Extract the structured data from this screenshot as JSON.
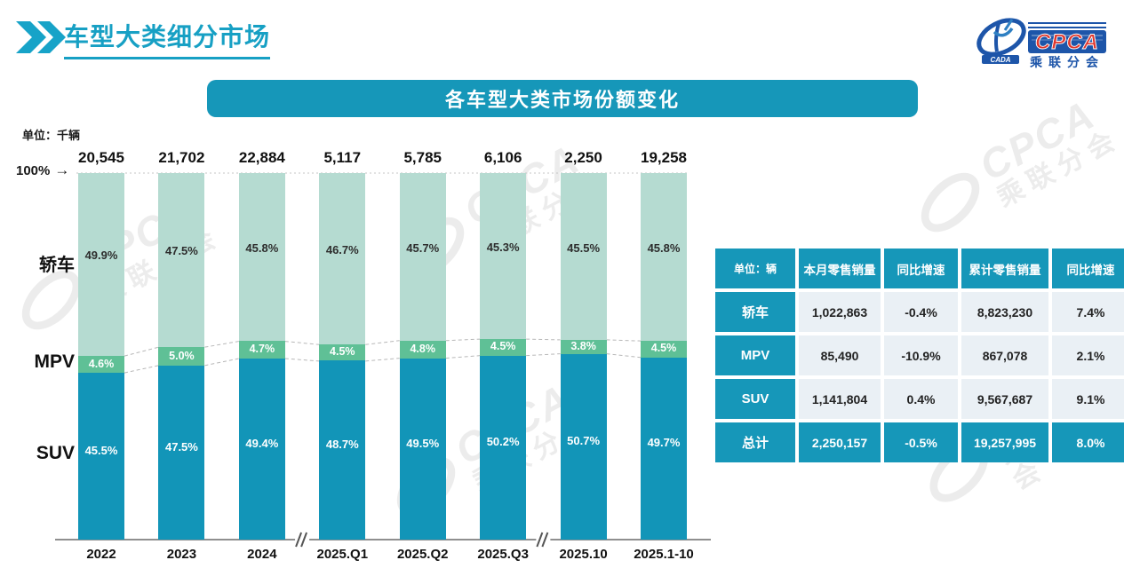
{
  "page": {
    "title": "车型大类细分市场"
  },
  "logo": {
    "cpca": "CPCA",
    "cada": "CADA",
    "subtitle": "乘联分会",
    "watermark_cpca": "CPCA",
    "watermark_sub": "乘联分会"
  },
  "banner": {
    "title": "各车型大类市场份额变化"
  },
  "chart": {
    "unit_label": "单位：千辆",
    "axis_100_label": "100%",
    "arrow_icon": "→",
    "category_labels": {
      "sedan": "轿车",
      "mpv": "MPV",
      "suv": "SUV"
    }
  },
  "chart_data": {
    "type": "bar",
    "subtype": "100%-stacked-column",
    "title": "各车型大类市场份额变化",
    "unit": "千辆",
    "categories": [
      "2022",
      "2023",
      "2024",
      "2025.Q1",
      "2025.Q2",
      "2025.Q3",
      "2025.10",
      "2025.1-10"
    ],
    "totals": [
      "20,545",
      "21,702",
      "22,884",
      "5,117",
      "5,785",
      "6,106",
      "2,250",
      "19,258"
    ],
    "series": [
      {
        "name": "SUV",
        "color": "#1295b8",
        "values": [
          45.5,
          47.5,
          49.4,
          48.7,
          49.5,
          50.2,
          50.7,
          49.7
        ]
      },
      {
        "name": "MPV",
        "color": "#5fc096",
        "values": [
          4.6,
          5.0,
          4.7,
          4.5,
          4.8,
          4.5,
          3.8,
          4.5
        ]
      },
      {
        "name": "轿车",
        "color": "#b5dbd1",
        "values": [
          49.9,
          47.5,
          45.8,
          46.7,
          45.7,
          45.3,
          45.5,
          45.8
        ]
      }
    ],
    "ylim": [
      0,
      100
    ],
    "axis_breaks_after_index": [
      2,
      5
    ],
    "grid": false,
    "legend_position": "left-category-labels"
  },
  "table": {
    "unit_header": "单位：辆",
    "headers": [
      "本月零售销量",
      "同比增速",
      "累计零售销量",
      "同比增速"
    ],
    "rows": [
      {
        "label": "轿车",
        "cells": [
          "1,022,863",
          "-0.4%",
          "8,823,230",
          "7.4%"
        ],
        "highlight": false
      },
      {
        "label": "MPV",
        "cells": [
          "85,490",
          "-10.9%",
          "867,078",
          "2.1%"
        ],
        "highlight": false
      },
      {
        "label": "SUV",
        "cells": [
          "1,141,804",
          "0.4%",
          "9,567,687",
          "9.1%"
        ],
        "highlight": false
      },
      {
        "label": "总计",
        "cells": [
          "2,250,157",
          "-0.5%",
          "19,257,995",
          "8.0%"
        ],
        "highlight": true
      }
    ]
  },
  "colors": {
    "teal_main": "#1697b9",
    "suv": "#1295b8",
    "mpv": "#5fc096",
    "sedan": "#b5dbd1",
    "title_teal": "#17a0c4",
    "logo_blue": "#1d55a9",
    "logo_red": "#e0362c",
    "axis_gray": "#8f8f8f",
    "connector_gray": "#b8b8b8"
  }
}
